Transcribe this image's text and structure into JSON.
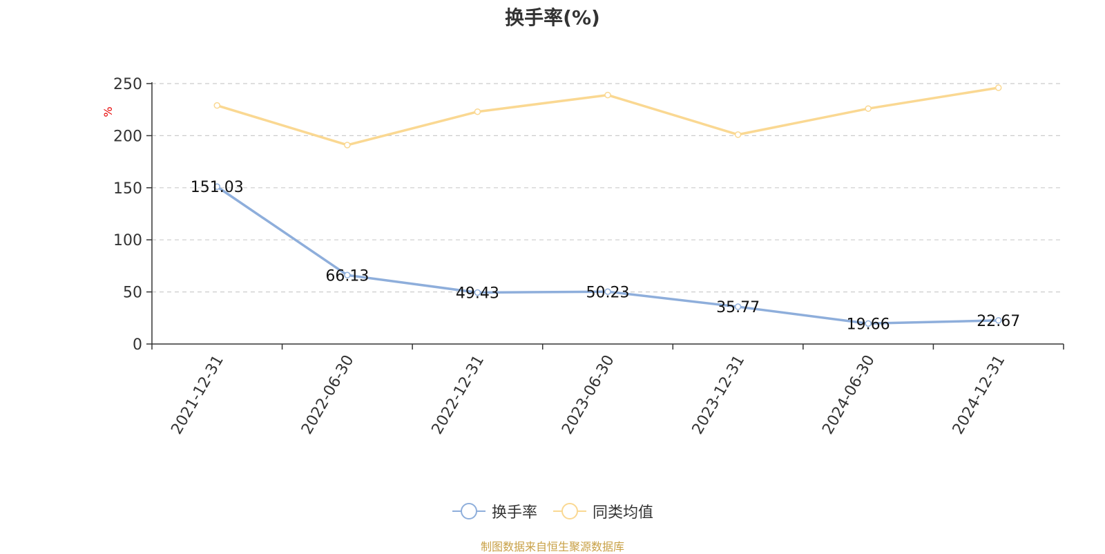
{
  "chart_data": {
    "type": "line",
    "title": "换手率(%)",
    "ylabel": "%",
    "ylim": [
      0,
      250
    ],
    "yticks": [
      0,
      50,
      100,
      150,
      200,
      250
    ],
    "grid": true,
    "legend_position": "bottom-center",
    "categories": [
      "2021-12-31",
      "2022-06-30",
      "2022-12-31",
      "2023-06-30",
      "2023-12-31",
      "2024-06-30",
      "2024-12-31"
    ],
    "series": [
      {
        "name": "换手率",
        "color": "#8eaedb",
        "data_labels": true,
        "values": [
          151.03,
          66.13,
          49.43,
          50.23,
          35.77,
          19.66,
          22.67
        ]
      },
      {
        "name": "同类均值",
        "color": "#fad892",
        "data_labels": false,
        "values": [
          229,
          191,
          223,
          239,
          201,
          226,
          246
        ]
      }
    ]
  },
  "colors": {
    "axis": "#333333",
    "grid": "#cccccc",
    "ylabel": "#e60000",
    "source": "#c8a046"
  },
  "source": "制图数据来自恒生聚源数据库"
}
